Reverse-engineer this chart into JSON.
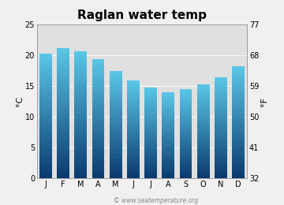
{
  "title": "Raglan water temp",
  "months": [
    "J",
    "F",
    "M",
    "A",
    "M",
    "J",
    "J",
    "A",
    "S",
    "O",
    "N",
    "D"
  ],
  "values_c": [
    20.3,
    21.2,
    20.7,
    19.4,
    17.5,
    15.9,
    14.8,
    14.0,
    14.5,
    15.3,
    16.5,
    18.2
  ],
  "ylim_c": [
    0,
    25
  ],
  "yticks_c": [
    0,
    5,
    10,
    15,
    20,
    25
  ],
  "ylim_f": [
    32,
    77
  ],
  "yticks_f": [
    32,
    41,
    50,
    59,
    68,
    77
  ],
  "ylabel_left": "°C",
  "ylabel_right": "°F",
  "bar_color_top": "#5bc8e8",
  "bar_color_bottom": "#0a3a6e",
  "background_color": "#f0f0f0",
  "plot_bg_color": "#e0e0e0",
  "watermark": "© www.seatemperature.org",
  "title_fontsize": 11,
  "axis_fontsize": 7,
  "label_fontsize": 8
}
